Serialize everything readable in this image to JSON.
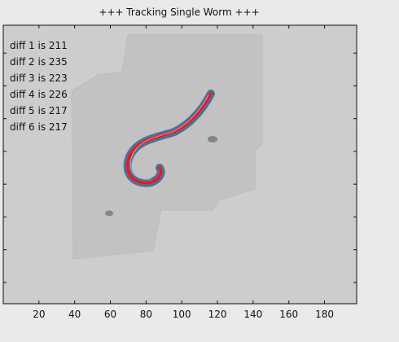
{
  "figure": {
    "title": "+++ Tracking Single Worm +++",
    "overlay_lines": [
      "diff 1 is 211",
      "diff 2 is 235",
      "diff 3 is 223",
      "diff 4 is 226",
      "diff 5 is 217",
      "diff 6 is 217"
    ],
    "x_axis": {
      "ticks": [
        20,
        40,
        60,
        80,
        100,
        120,
        140,
        160,
        180
      ],
      "labels": [
        "20",
        "40",
        "60",
        "80",
        "100",
        "120",
        "140",
        "160",
        "180"
      ],
      "range": [
        0,
        198
      ]
    },
    "y_axis": {
      "tick_count": 8,
      "labels_visible": false
    },
    "colors": {
      "figure_background": "#eaeaea",
      "image_background": "#cfcfcf",
      "tracked_outline": "#ff0000",
      "worm_body": "#4a6f9f"
    }
  }
}
